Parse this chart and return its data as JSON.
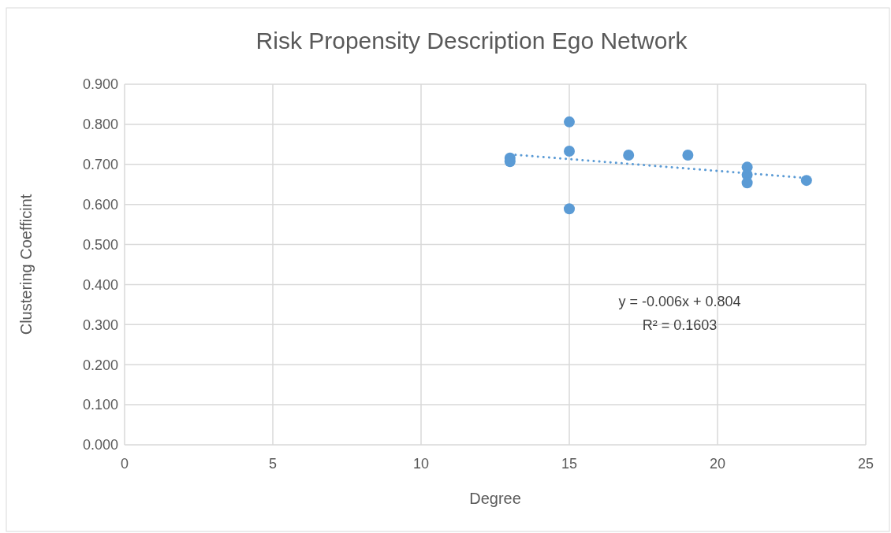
{
  "chart_data": {
    "type": "scatter",
    "title": "Risk Propensity Description Ego Network",
    "xlabel": "Degree",
    "ylabel": "Clustering Coefficint",
    "xlim": [
      0,
      25
    ],
    "xticks": [
      0,
      5,
      10,
      15,
      20,
      25
    ],
    "ylim": [
      0,
      0.9
    ],
    "yticks": [
      {
        "value": 0,
        "label": "0.000"
      },
      {
        "value": 0.1,
        "label": "0.100"
      },
      {
        "value": 0.2,
        "label": "0.200"
      },
      {
        "value": 0.3,
        "label": "0.300"
      },
      {
        "value": 0.4,
        "label": "0.400"
      },
      {
        "value": 0.5,
        "label": "0.500"
      },
      {
        "value": 0.6,
        "label": "0.600"
      },
      {
        "value": 0.7,
        "label": "0.700"
      },
      {
        "value": 0.8,
        "label": "0.800"
      },
      {
        "value": 0.9,
        "label": "0.900"
      }
    ],
    "grid": true,
    "marker": "circle",
    "series": [
      {
        "color": "#5b9bd5",
        "x": [
          13,
          13,
          15,
          15,
          15,
          17,
          19,
          21,
          21,
          21,
          23
        ],
        "values": [
          0.716,
          0.707,
          0.806,
          0.733,
          0.589,
          0.723,
          0.723,
          0.693,
          0.674,
          0.654,
          0.66
        ]
      },
      {
        "type": "line",
        "color": "#5b9bd5",
        "line_style": "dotted",
        "marker": "none",
        "x": [
          13,
          23
        ],
        "values": [
          0.725,
          0.666
        ]
      }
    ],
    "annotations": [
      "y = -0.006x + 0.804",
      "R² = 0.1603"
    ]
  }
}
